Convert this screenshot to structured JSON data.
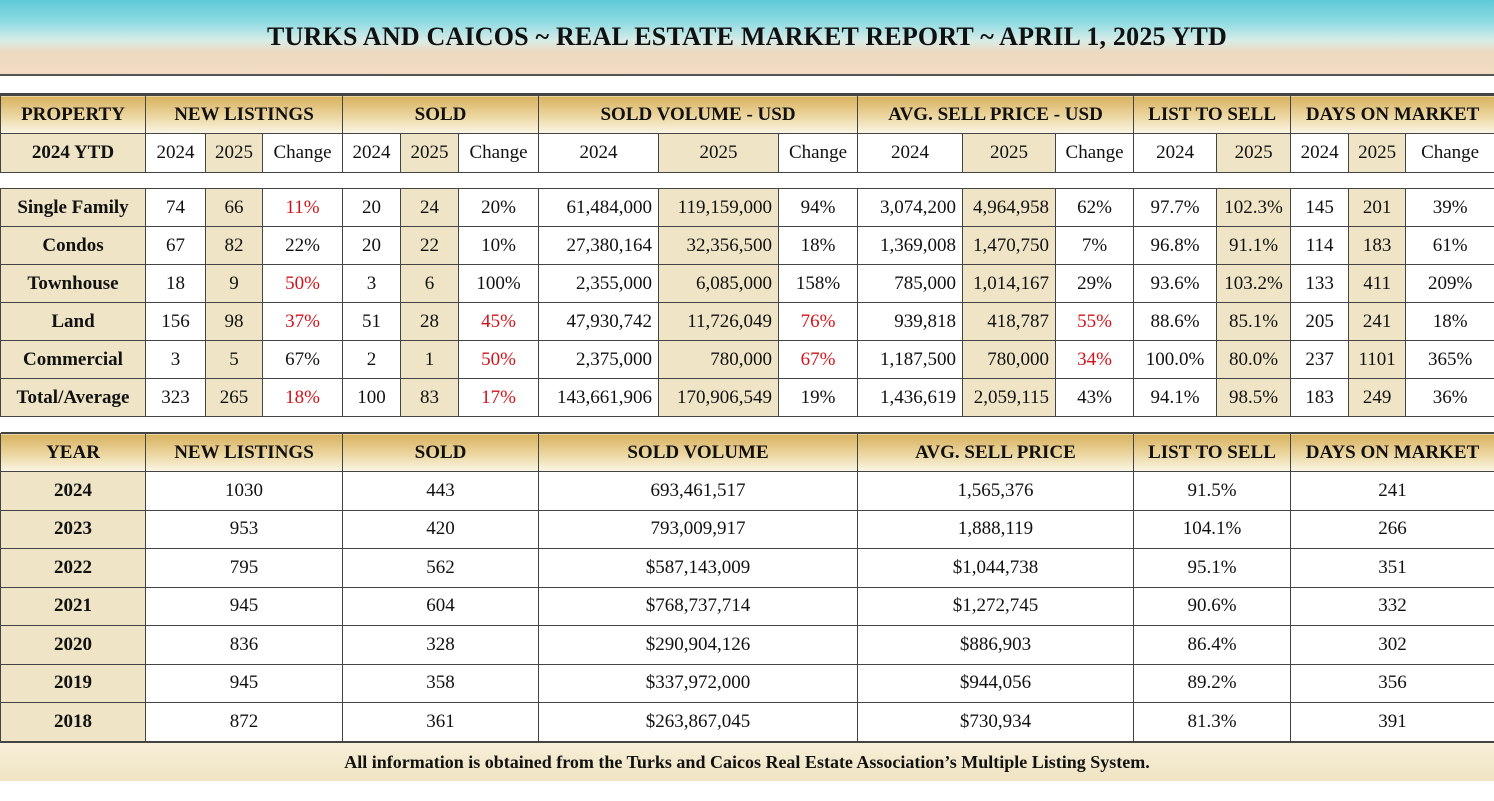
{
  "title": "TURKS AND CAICOS ~ REAL ESTATE MARKET REPORT ~  APRIL 1, 2025 YTD",
  "ytd_table": {
    "group_headers": [
      "PROPERTY",
      "NEW LISTINGS",
      "SOLD",
      "SOLD VOLUME - USD",
      "AVG. SELL PRICE - USD",
      "LIST TO SELL",
      "DAYS ON MARKET"
    ],
    "row_label_header": "2024 YTD",
    "sub_headers": [
      "2024",
      "2025",
      "Change",
      "2024",
      "2025",
      "Change",
      "2024",
      "2025",
      "Change",
      "2024",
      "2025",
      "Change",
      "2024",
      "2025",
      "2024",
      "2025",
      "Change"
    ],
    "rows": [
      {
        "property": "Single Family",
        "values": [
          "74",
          "66",
          "11%",
          "20",
          "24",
          "20%",
          "61,484,000",
          "119,159,000",
          "94%",
          "3,074,200",
          "4,964,958",
          "62%",
          "97.7%",
          "102.3%",
          "145",
          "201",
          "39%"
        ],
        "red": [
          2
        ]
      },
      {
        "property": "Condos",
        "values": [
          "67",
          "82",
          "22%",
          "20",
          "22",
          "10%",
          "27,380,164",
          "32,356,500",
          "18%",
          "1,369,008",
          "1,470,750",
          "7%",
          "96.8%",
          "91.1%",
          "114",
          "183",
          "61%"
        ],
        "red": []
      },
      {
        "property": "Townhouse",
        "values": [
          "18",
          "9",
          "50%",
          "3",
          "6",
          "100%",
          "2,355,000",
          "6,085,000",
          "158%",
          "785,000",
          "1,014,167",
          "29%",
          "93.6%",
          "103.2%",
          "133",
          "411",
          "209%"
        ],
        "red": [
          2
        ]
      },
      {
        "property": "Land",
        "values": [
          "156",
          "98",
          "37%",
          "51",
          "28",
          "45%",
          "47,930,742",
          "11,726,049",
          "76%",
          "939,818",
          "418,787",
          "55%",
          "88.6%",
          "85.1%",
          "205",
          "241",
          "18%"
        ],
        "red": [
          2,
          5,
          8,
          11
        ]
      },
      {
        "property": "Commercial",
        "values": [
          "3",
          "5",
          "67%",
          "2",
          "1",
          "50%",
          "2,375,000",
          "780,000",
          "67%",
          "1,187,500",
          "780,000",
          "34%",
          "100.0%",
          "80.0%",
          "237",
          "1101",
          "365%"
        ],
        "red": [
          5,
          8,
          11
        ]
      },
      {
        "property": "Total/Average",
        "values": [
          "323",
          "265",
          "18%",
          "100",
          "83",
          "17%",
          "143,661,906",
          "170,906,549",
          "19%",
          "1,436,619",
          "2,059,115",
          "43%",
          "94.1%",
          "98.5%",
          "183",
          "249",
          "36%"
        ],
        "red": [
          2,
          5
        ]
      }
    ],
    "colors": {
      "negative": "#d0141a",
      "highlight": "#efe5c6",
      "header_gold": "#d9b25f"
    }
  },
  "annual_table": {
    "headers": [
      "YEAR",
      "NEW LISTINGS",
      "SOLD",
      "SOLD VOLUME",
      "AVG. SELL PRICE",
      "LIST TO SELL",
      "DAYS ON MARKET"
    ],
    "rows": [
      [
        "2024",
        "1030",
        "443",
        "693,461,517",
        "1,565,376",
        "91.5%",
        "241"
      ],
      [
        "2023",
        "953",
        "420",
        "793,009,917",
        "1,888,119",
        "104.1%",
        "266"
      ],
      [
        "2022",
        "795",
        "562",
        "$587,143,009",
        "$1,044,738",
        "95.1%",
        "351"
      ],
      [
        "2021",
        "945",
        "604",
        "$768,737,714",
        "$1,272,745",
        "90.6%",
        "332"
      ],
      [
        "2020",
        "836",
        "328",
        "$290,904,126",
        "$886,903",
        "86.4%",
        "302"
      ],
      [
        "2019",
        "945",
        "358",
        "$337,972,000",
        "$944,056",
        "89.2%",
        "356"
      ],
      [
        "2018",
        "872",
        "361",
        "$263,867,045",
        "$730,934",
        "81.3%",
        "391"
      ]
    ]
  },
  "footer": "All information is obtained from the Turks and Caicos Real Estate Association’s Multiple Listing System."
}
